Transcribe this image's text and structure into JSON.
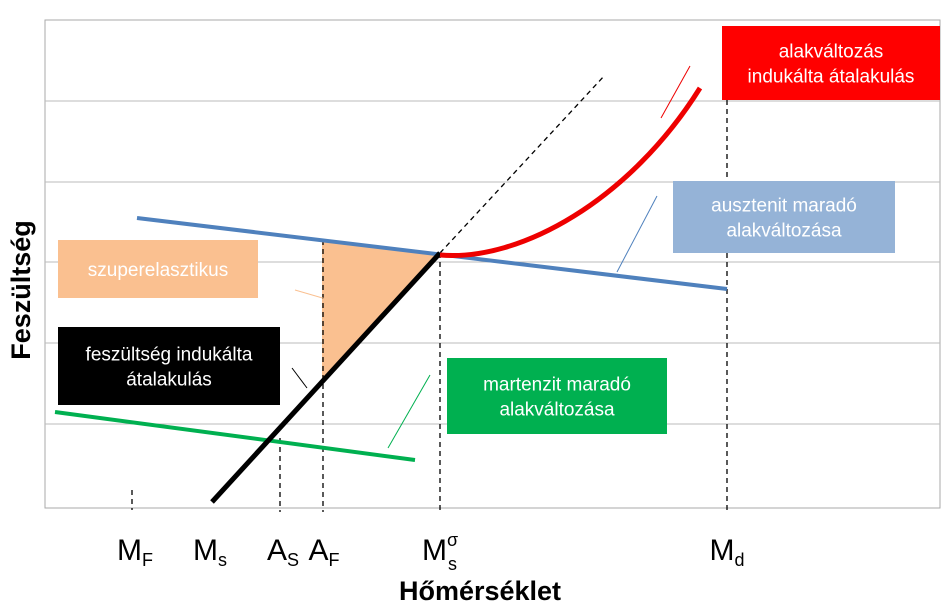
{
  "axes": {
    "x_title": "Hőmérséklet",
    "y_title": "Feszültség"
  },
  "x_labels": [
    {
      "main": "M",
      "sub": "F"
    },
    {
      "main": "M",
      "sub": "s"
    },
    {
      "main": "A",
      "sub": "S"
    },
    {
      "main": "A",
      "sub": "F"
    },
    {
      "main": "M",
      "sup": "σ",
      "sub": "s"
    },
    {
      "main": "M",
      "sub": "d"
    }
  ],
  "boxes": [
    {
      "lines": [
        "szuperelasztikus"
      ]
    },
    {
      "lines": [
        "feszültség indukálta",
        "átalakulás"
      ]
    },
    {
      "lines": [
        "martenzit maradó",
        "alakváltozása"
      ]
    },
    {
      "lines": [
        "ausztenit maradó",
        "alakváltozása"
      ]
    },
    {
      "lines": [
        "alakváltozás",
        "indukálta átalakulás"
      ]
    }
  ]
}
